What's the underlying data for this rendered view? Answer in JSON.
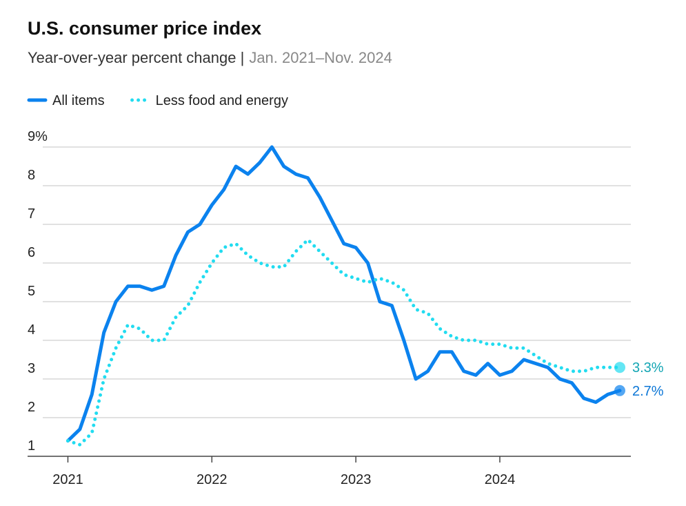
{
  "chart_data": {
    "type": "line",
    "title": "U.S. consumer price index",
    "subtitle": "Year-over-year percent change |",
    "date_range": "Jan. 2021–Nov. 2024",
    "x": [
      2021,
      2021.0833,
      2021.1667,
      2021.25,
      2021.3333,
      2021.4167,
      2021.5,
      2021.5833,
      2021.6667,
      2021.75,
      2021.8333,
      2021.9167,
      2022,
      2022.0833,
      2022.1667,
      2022.25,
      2022.3333,
      2022.4167,
      2022.5,
      2022.5833,
      2022.6667,
      2022.75,
      2022.8333,
      2022.9167,
      2023,
      2023.0833,
      2023.1667,
      2023.25,
      2023.3333,
      2023.4167,
      2023.5,
      2023.5833,
      2023.6667,
      2023.75,
      2023.8333,
      2023.9167,
      2024,
      2024.0833,
      2024.1667,
      2024.25,
      2024.3333,
      2024.4167,
      2024.5,
      2024.5833,
      2024.6667,
      2024.75,
      2024.8333
    ],
    "series": [
      {
        "name": "All items",
        "color": "#0b82ee",
        "style": "solid",
        "values": [
          1.4,
          1.7,
          2.6,
          4.2,
          5.0,
          5.4,
          5.4,
          5.3,
          5.4,
          6.2,
          6.8,
          7.0,
          7.5,
          7.9,
          8.5,
          8.3,
          8.6,
          9.0,
          8.5,
          8.3,
          8.2,
          7.7,
          7.1,
          6.5,
          6.4,
          6.0,
          5.0,
          4.9,
          4.0,
          3.0,
          3.2,
          3.7,
          3.7,
          3.2,
          3.1,
          3.4,
          3.1,
          3.2,
          3.5,
          3.4,
          3.3,
          3.0,
          2.9,
          2.5,
          2.4,
          2.6,
          2.7
        ],
        "value_labels": [
          null,
          null,
          null,
          null,
          null,
          null,
          null,
          null,
          null,
          null,
          null,
          null,
          null,
          null,
          null,
          null,
          null,
          null,
          null,
          null,
          null,
          null,
          null,
          null,
          null,
          null,
          null,
          null,
          null,
          null,
          null,
          null,
          null,
          null,
          null,
          null,
          null,
          null,
          null,
          null,
          null,
          null,
          null,
          null,
          null,
          null,
          "2.7%"
        ]
      },
      {
        "name": "Less food and energy",
        "color": "#22dcf0",
        "style": "dotted",
        "values": [
          1.4,
          1.3,
          1.6,
          3.0,
          3.8,
          4.4,
          4.3,
          4.0,
          4.0,
          4.6,
          4.9,
          5.5,
          6.0,
          6.4,
          6.5,
          6.2,
          6.0,
          5.9,
          5.9,
          6.3,
          6.6,
          6.3,
          6.0,
          5.7,
          5.6,
          5.5,
          5.6,
          5.5,
          5.3,
          4.8,
          4.7,
          4.3,
          4.1,
          4.0,
          4.0,
          3.9,
          3.9,
          3.8,
          3.8,
          3.6,
          3.4,
          3.3,
          3.2,
          3.2,
          3.3,
          3.3,
          3.3
        ],
        "value_labels": [
          null,
          null,
          null,
          null,
          null,
          null,
          null,
          null,
          null,
          null,
          null,
          null,
          null,
          null,
          null,
          null,
          null,
          null,
          null,
          null,
          null,
          null,
          null,
          null,
          null,
          null,
          null,
          null,
          null,
          null,
          null,
          null,
          null,
          null,
          null,
          null,
          null,
          null,
          null,
          null,
          null,
          null,
          null,
          null,
          null,
          null,
          "3.3%"
        ]
      }
    ],
    "xlim": [
      2020.72,
      2024.91
    ],
    "xticks": [
      2021,
      2022,
      2023,
      2024
    ],
    "ylim": [
      1,
      9
    ],
    "yticks": [
      1,
      2,
      3,
      4,
      5,
      6,
      7,
      8,
      {
        "value": 9,
        "label": "9%"
      }
    ],
    "grid": true
  }
}
